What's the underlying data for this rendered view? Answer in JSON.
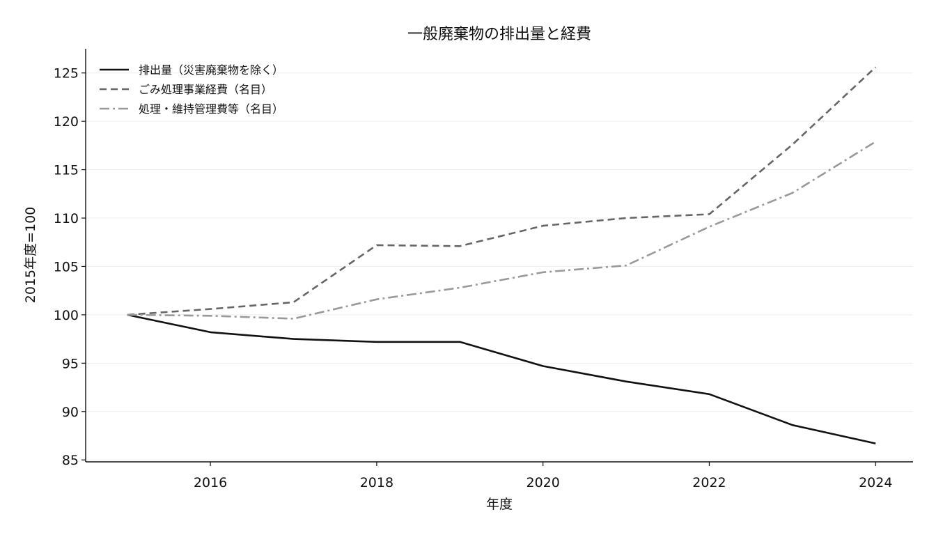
{
  "chart_data": {
    "type": "line",
    "title": "一般廃棄物の排出量と経費",
    "xlabel": "年度",
    "ylabel": "2015年度=100",
    "xlim": [
      2014.5,
      2024.45
    ],
    "ylim": [
      84.8,
      127.5
    ],
    "xticks": [
      2016,
      2018,
      2020,
      2022,
      2024
    ],
    "yticks": [
      85,
      90,
      95,
      100,
      105,
      110,
      115,
      120,
      125
    ],
    "grid": "horizontal",
    "legend_position": "top-left",
    "x": [
      2015,
      2016,
      2017,
      2018,
      2019,
      2020,
      2021,
      2022,
      2023,
      2024
    ],
    "series": [
      {
        "name": "排出量（災害廃棄物を除く）",
        "style": "solid",
        "color": "#111111",
        "values": [
          100,
          98.2,
          97.5,
          97.2,
          97.2,
          94.7,
          93.1,
          91.8,
          88.6,
          86.7
        ]
      },
      {
        "name": "ごみ処理事業経費（名目）",
        "style": "dashed",
        "color": "#666666",
        "values": [
          100,
          100.6,
          101.3,
          107.2,
          107.1,
          109.2,
          110.0,
          110.4,
          117.6,
          125.6
        ]
      },
      {
        "name": "処理・維持管理費等（名目）",
        "style": "dashdot",
        "color": "#999999",
        "values": [
          100,
          99.9,
          99.6,
          101.6,
          102.8,
          104.4,
          105.1,
          109.1,
          112.6,
          117.9
        ]
      }
    ]
  }
}
